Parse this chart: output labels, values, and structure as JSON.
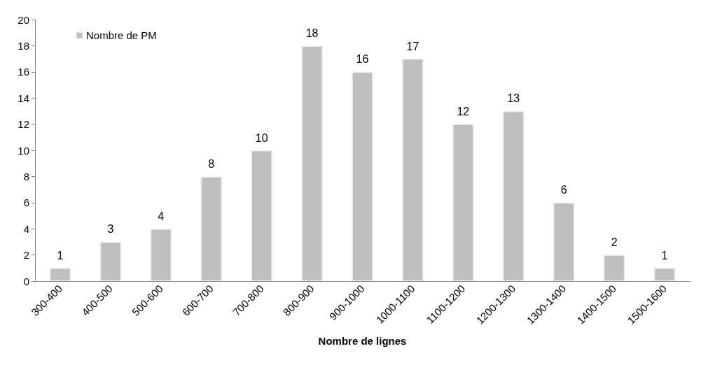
{
  "chart_data": {
    "type": "bar",
    "xlabel": "Nombre de lignes",
    "categories": [
      "300-400",
      "400-500",
      "500-600",
      "600-700",
      "700-800",
      "800-900",
      "900-1000",
      "1000-1100",
      "1100-1200",
      "1200-1300",
      "1300-1400",
      "1400-1500",
      "1500-1600"
    ],
    "series": [
      {
        "name": "Nombre de PM",
        "color": "#bfbfbf",
        "values": [
          1,
          3,
          4,
          8,
          10,
          18,
          16,
          17,
          12,
          13,
          6,
          2,
          1
        ]
      }
    ],
    "ylim": [
      0,
      20
    ],
    "yticks": [
      0,
      2,
      4,
      6,
      8,
      10,
      12,
      14,
      16,
      18,
      20
    ],
    "grid": false,
    "legend": "top left",
    "data_labels": true
  }
}
